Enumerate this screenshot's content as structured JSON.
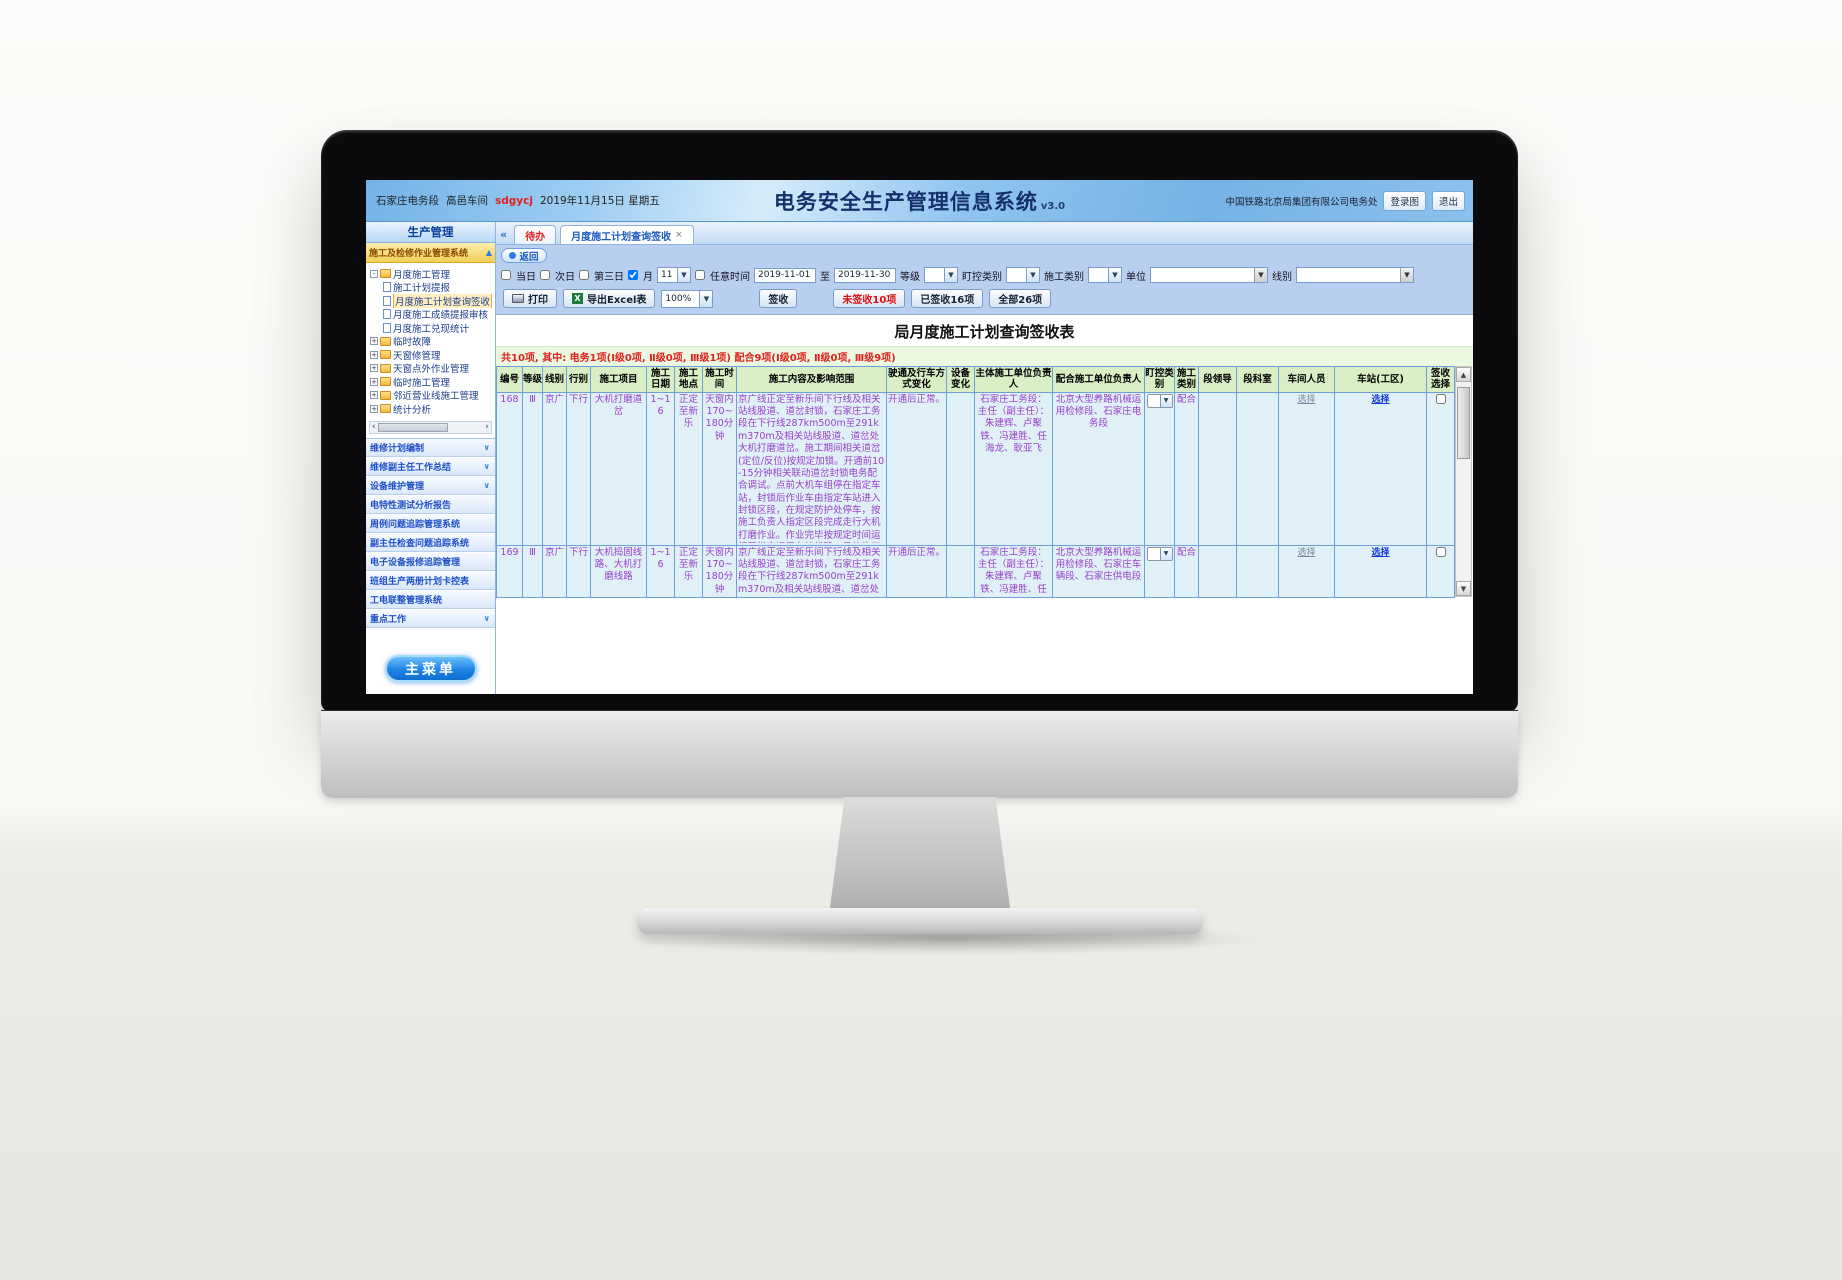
{
  "colors": {
    "banner_blue": "#7ab4e8",
    "sidebar_gold": "#f2cd58",
    "table_header_green": "#d8efc5",
    "table_body_cyan": "#dff0f7",
    "cell_text_purple": "#9a3fca",
    "alert_red": "#e02020",
    "accent_blue": "#1a5ac0",
    "button_blue": "#1d84e6"
  },
  "icons": {
    "print": "printer-icon",
    "export": "excel-icon",
    "tab_close": "close-icon",
    "sidebar_collapse": "chevron-left-icon",
    "accordion": "chevron-down-icon",
    "tree_folder": "folder-icon",
    "tree_page": "document-icon"
  },
  "banner": {
    "depot": "石家庄电务段",
    "workshop": "高邑车间",
    "user": "sdgycj",
    "date": "2019年11月15日 星期五",
    "title": "电务安全生产管理信息系统",
    "version": "v3.0",
    "org": "中国铁路北京局集团有限公司电务处",
    "btn_screen": "登录图",
    "btn_exit": "退出"
  },
  "tabs": {
    "collapse": "«",
    "todo": "待办",
    "active": "月度施工计划查询签收",
    "close": "×"
  },
  "sidebar": {
    "header": "生产管理",
    "system": "施工及检修作业管理系统",
    "tree": {
      "folder": "月度施工管理",
      "children": [
        {
          "label": "施工计划提报",
          "selected": false
        },
        {
          "label": "月度施工计划查询签收",
          "selected": true
        },
        {
          "label": "月度施工成绩提报审核",
          "selected": false
        },
        {
          "label": "月度施工兑现统计",
          "selected": false
        }
      ],
      "folders": [
        "临时故障",
        "天窗修管理",
        "天窗点外作业管理",
        "临时施工管理",
        "邻近营业线施工管理",
        "统计分析"
      ]
    },
    "accordion": [
      {
        "label": "维修计划编制",
        "chevron": true
      },
      {
        "label": "维修副主任工作总结",
        "chevron": true
      },
      {
        "label": "设备维护管理",
        "chevron": true
      },
      {
        "label": "电特性测试分析报告",
        "chevron": false
      },
      {
        "label": "周例问题追踪管理系统",
        "chevron": false
      },
      {
        "label": "副主任检查问题追踪系统",
        "chevron": false
      },
      {
        "label": "电子设备报修追踪管理",
        "chevron": false
      },
      {
        "label": "班组生产两册计划卡控表",
        "chevron": false
      },
      {
        "label": "工电联整管理系统",
        "chevron": false
      },
      {
        "label": "重点工作",
        "chevron": true
      }
    ],
    "main_menu": "主菜单"
  },
  "panel": {
    "back": "返回",
    "filters": {
      "today": "当日",
      "next_day": "次日",
      "third_day": "第三日",
      "month": "月",
      "month_value": "11",
      "any_time": "任意时间",
      "date_from": "2019-11-01",
      "to": "至",
      "date_to": "2019-11-30",
      "grade": "等级",
      "watch_type": "盯控类别",
      "cons_type": "施工类别",
      "unit": "单位",
      "line": "线别"
    },
    "toolbar": {
      "print": "打印",
      "export": "导出Excel表",
      "zoom": "100%",
      "sign": "签收",
      "unsigned": "未签收10项",
      "signed": "已签收16项",
      "all": "全部26项"
    }
  },
  "sheet": {
    "title": "局月度施工计划查询签收表",
    "summary": "共10项, 其中: 电务1项(Ⅰ级0项, Ⅱ级0项, Ⅲ级1项)  配合9项(Ⅰ级0项, Ⅱ级0项, Ⅲ级9项)",
    "select_label": "选择",
    "columns": [
      {
        "key": "no",
        "label": "编号"
      },
      {
        "key": "grade",
        "label": "等级"
      },
      {
        "key": "line",
        "label": "线别"
      },
      {
        "key": "direction",
        "label": "行别"
      },
      {
        "key": "project",
        "label": "施工项目"
      },
      {
        "key": "date",
        "label": "施工日期"
      },
      {
        "key": "place",
        "label": "施工地点"
      },
      {
        "key": "time",
        "label": "施工时间"
      },
      {
        "key": "content",
        "label": "施工内容及影响范围"
      },
      {
        "key": "traffic",
        "label": "驶通及行车方式变化"
      },
      {
        "key": "equipment",
        "label": "设备变化"
      },
      {
        "key": "main_unit",
        "label": "主体施工单位负责人"
      },
      {
        "key": "coop_unit",
        "label": "配合施工单位负责人"
      },
      {
        "key": "watch_type",
        "label": "盯控类别"
      },
      {
        "key": "cons_type",
        "label": "施工类别"
      },
      {
        "key": "leader",
        "label": "段领导"
      },
      {
        "key": "dept",
        "label": "段科室"
      },
      {
        "key": "workshop",
        "label": "车间人员"
      },
      {
        "key": "station",
        "label": "车站(工区)"
      },
      {
        "key": "sign",
        "label": "签收选择"
      }
    ],
    "rows": [
      {
        "no": "168",
        "grade": "Ⅲ",
        "line": "京广",
        "direction": "下行",
        "project": "大机打磨道岔",
        "date": "1~16",
        "place": "正定至新乐",
        "time": "天窗内170~180分钟",
        "content": "京广线正定至新乐间下行线及相关站线股道、道岔封锁，石家庄工务段在下行线287km500m至291km370m及相关站线股道、道岔处大机打磨道岔。施工期间相关道岔(定位/反位)按规定加锁。开通前10-15分钟相关联动道岔封锁电务配合调试。点前大机车组停在指定车站，封锁后作业车由指定车站进入封锁区段，在规定防护处停车，按施工负责人指定区段完成走行大机打磨作业。作业完毕按规定时间运行至指定运用车站线路。具体施工地点、日期、时间、范围列车进出封锁地段方式、电号请求通知以口头形式为准。需具同车配合。",
        "traffic": "开通后正常。",
        "equipment": "",
        "main_unit": "石家庄工务段：主任（副主任）：朱建辉、卢聚铁、冯建胜、任海龙、耿亚飞",
        "coop_unit": "北京大型养路机械运用检修段、石家庄电务段",
        "cons_type": "配合",
        "leader": "",
        "dept": ""
      },
      {
        "no": "169",
        "grade": "Ⅲ",
        "line": "京广",
        "direction": "下行",
        "project": "大机捣固线路、大机打磨线路",
        "date": "1~16",
        "place": "正定至新乐",
        "time": "天窗内170~180分钟",
        "content": "京广线正定至新乐间下行线及相关站线股道、道岔封锁，石家庄工务段在下行线287km500m至291km370m及相关站线股道、道岔处大",
        "traffic": "开通后正常。",
        "equipment": "",
        "main_unit": "石家庄工务段：主任（副主任）：朱建辉、卢聚铁、冯建胜、任海龙、耿亚飞",
        "coop_unit": "北京大型养路机械运用检修段、石家庄车辆段、石家庄供电段",
        "cons_type": "配合",
        "leader": "",
        "dept": ""
      }
    ]
  }
}
